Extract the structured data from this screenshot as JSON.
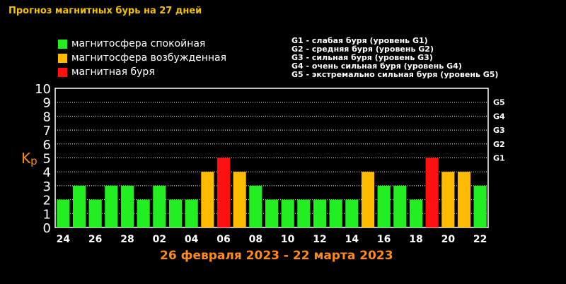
{
  "title": "Прогноз магнитных бурь на 27 дней",
  "legend": [
    {
      "label": "магнитосфера спокойная",
      "color": "#22ee22"
    },
    {
      "label": "магнитосфера возбужденная",
      "color": "#ffbb00"
    },
    {
      "label": "магнитная буря",
      "color": "#ff1111"
    }
  ],
  "g_levels": [
    "G1 - слабая буря (уровень G1)",
    "G2 - средняя буря (уровень G2)",
    "G3 - сильная буря (уровень G3)",
    "G4 - очень сильная буря (уровень G4)",
    "G5 - экстремально сильная буря (уровень G5)"
  ],
  "kp_label": {
    "main": "K",
    "sub": "p"
  },
  "date_range": "26 февраля 2023 - 22 марта 2023",
  "chart_data": {
    "type": "bar",
    "ylabel": "Kp",
    "ylim": [
      0,
      10
    ],
    "yticks": [
      0,
      1,
      2,
      3,
      4,
      5,
      6,
      7,
      8,
      9,
      10
    ],
    "right_ticks": [
      {
        "label": "G1",
        "value": 5
      },
      {
        "label": "G2",
        "value": 6
      },
      {
        "label": "G3",
        "value": 7
      },
      {
        "label": "G4",
        "value": 8
      },
      {
        "label": "G5",
        "value": 9
      }
    ],
    "x_tick_labels": [
      "24",
      "26",
      "28",
      "02",
      "04",
      "06",
      "08",
      "10",
      "12",
      "14",
      "16",
      "18",
      "20",
      "22"
    ],
    "values": [
      2,
      3,
      2,
      3,
      3,
      2,
      3,
      2,
      2,
      4,
      5,
      4,
      3,
      2,
      2,
      2,
      2,
      2,
      2,
      4,
      3,
      3,
      2,
      5,
      4,
      4,
      3
    ],
    "colors": {
      "calm": "#22ee22",
      "excited": "#ffbb00",
      "storm": "#ff1111"
    },
    "grid": true
  }
}
